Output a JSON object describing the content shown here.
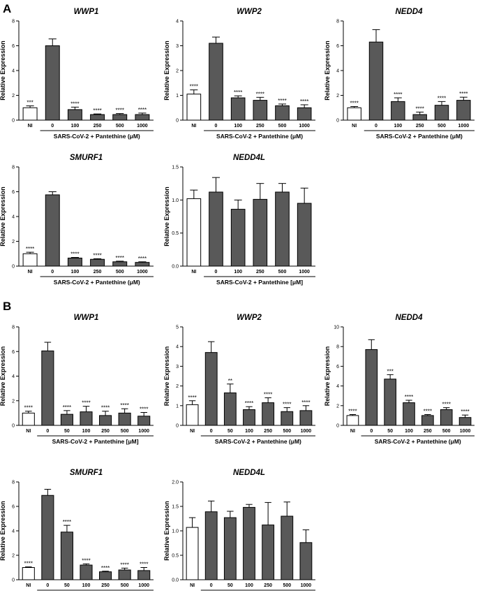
{
  "panels": [
    {
      "letter": "A"
    },
    {
      "letter": "B"
    }
  ],
  "colors": {
    "ni_bar": "#ffffff",
    "treated_bar": "#595959",
    "axis": "#000000"
  },
  "chart_data": [
    {
      "type": "bar",
      "panel": "A",
      "title": "WWP1",
      "ylabel": "Relative Expression",
      "xlabel": "SARS-CoV-2 + Pantethine (μM)",
      "categories": [
        "NI",
        "0",
        "100",
        "250",
        "500",
        "1000"
      ],
      "values": [
        1.0,
        6.0,
        0.85,
        0.45,
        0.45,
        0.45
      ],
      "errors": [
        0.15,
        0.55,
        0.2,
        0.05,
        0.08,
        0.12
      ],
      "significance": [
        "***",
        "",
        "****",
        "****",
        "****",
        "****"
      ],
      "ylim": [
        0,
        8
      ],
      "yticks": [
        0,
        2,
        4,
        6,
        8
      ]
    },
    {
      "type": "bar",
      "panel": "A",
      "title": "WWP2",
      "ylabel": "Relative Expression",
      "xlabel": "SARS-CoV-2 + Pantethine (μM)",
      "categories": [
        "NI",
        "0",
        "100",
        "250",
        "500",
        "1000"
      ],
      "values": [
        1.05,
        3.1,
        0.9,
        0.8,
        0.58,
        0.5
      ],
      "errors": [
        0.17,
        0.25,
        0.08,
        0.12,
        0.07,
        0.12
      ],
      "significance": [
        "****",
        "",
        "****",
        "****",
        "****",
        "****"
      ],
      "ylim": [
        0,
        4
      ],
      "yticks": [
        0,
        1,
        2,
        3,
        4
      ]
    },
    {
      "type": "bar",
      "panel": "A",
      "title": "NEDD4",
      "ylabel": "Relative Expression",
      "xlabel": "SARS-CoV-2 + Pantethine (μM)",
      "categories": [
        "NI",
        "0",
        "100",
        "250",
        "500",
        "1000"
      ],
      "values": [
        1.0,
        6.3,
        1.5,
        0.45,
        1.2,
        1.6
      ],
      "errors": [
        0.1,
        1.0,
        0.3,
        0.2,
        0.3,
        0.25
      ],
      "significance": [
        "****",
        "",
        "****",
        "****",
        "****",
        "****"
      ],
      "ylim": [
        0,
        8
      ],
      "yticks": [
        0,
        2,
        4,
        6,
        8
      ]
    },
    {
      "type": "bar",
      "panel": "A",
      "title": "SMURF1",
      "ylabel": "Relative Expression",
      "xlabel": "SARS-CoV-2 + Pantethine (μM)",
      "categories": [
        "NI",
        "0",
        "100",
        "250",
        "500",
        "1000"
      ],
      "values": [
        1.0,
        5.75,
        0.65,
        0.55,
        0.35,
        0.3
      ],
      "errors": [
        0.12,
        0.25,
        0.05,
        0.05,
        0.05,
        0.05
      ],
      "significance": [
        "****",
        "",
        "****",
        "****",
        "****",
        "****"
      ],
      "ylim": [
        0,
        8
      ],
      "yticks": [
        0,
        2,
        4,
        6,
        8
      ]
    },
    {
      "type": "bar",
      "panel": "A",
      "title": "NEDD4L",
      "ylabel": "Relative Expression",
      "xlabel": "SARS-CoV-2 + Pantethine [μM]",
      "categories": [
        "NI",
        "0",
        "100",
        "250",
        "500",
        "1000"
      ],
      "values": [
        1.02,
        1.12,
        0.86,
        1.01,
        1.12,
        0.95
      ],
      "errors": [
        0.13,
        0.22,
        0.14,
        0.24,
        0.13,
        0.23
      ],
      "significance": [
        "",
        "",
        "",
        "",
        "",
        ""
      ],
      "ylim": [
        0,
        1.5
      ],
      "yticks": [
        0.0,
        0.5,
        1.0,
        1.5
      ]
    },
    {
      "type": "bar",
      "panel": "B",
      "title": "WWP1",
      "ylabel": "Relative Expression",
      "xlabel": "SARS-CoV-2 + Pantethine [μM]",
      "categories": [
        "NI",
        "0",
        "50",
        "100",
        "250",
        "500",
        "1000"
      ],
      "values": [
        1.0,
        6.05,
        0.9,
        1.1,
        0.8,
        1.0,
        0.75
      ],
      "errors": [
        0.15,
        0.7,
        0.3,
        0.45,
        0.35,
        0.35,
        0.3
      ],
      "significance": [
        "****",
        "",
        "****",
        "****",
        "****",
        "****",
        "****"
      ],
      "ylim": [
        0,
        8
      ],
      "yticks": [
        0,
        2,
        4,
        6,
        8
      ]
    },
    {
      "type": "bar",
      "panel": "B",
      "title": "WWP2",
      "ylabel": "Relative Expression",
      "xlabel": "SARS-CoV-2 + Pantethine (μM)",
      "categories": [
        "NI",
        "0",
        "50",
        "100",
        "250",
        "500",
        "1000"
      ],
      "values": [
        1.05,
        3.7,
        1.65,
        0.8,
        1.15,
        0.7,
        0.75
      ],
      "errors": [
        0.2,
        0.55,
        0.45,
        0.15,
        0.25,
        0.2,
        0.25
      ],
      "significance": [
        "****",
        "",
        "**",
        "****",
        "****",
        "****",
        "****"
      ],
      "ylim": [
        0,
        5
      ],
      "yticks": [
        0,
        1,
        2,
        3,
        4,
        5
      ]
    },
    {
      "type": "bar",
      "panel": "B",
      "title": "NEDD4",
      "ylabel": "Relative Expression",
      "xlabel": "SARS-CoV-2 + Pantethine (μM)",
      "categories": [
        "NI",
        "0",
        "50",
        "100",
        "250",
        "500",
        "1000"
      ],
      "values": [
        1.0,
        7.7,
        4.7,
        2.3,
        1.0,
        1.6,
        0.8
      ],
      "errors": [
        0.1,
        1.0,
        0.45,
        0.25,
        0.1,
        0.2,
        0.25
      ],
      "significance": [
        "****",
        "",
        "***",
        "****",
        "****",
        "****",
        "****"
      ],
      "ylim": [
        0,
        10
      ],
      "yticks": [
        0,
        2,
        4,
        6,
        8,
        10
      ]
    },
    {
      "type": "bar",
      "panel": "B",
      "title": "SMURF1",
      "ylabel": "Relative Expression",
      "xlabel": "SARS-CoV-2 + Pantethine (μM)",
      "categories": [
        "NI",
        "0",
        "50",
        "100",
        "250",
        "500",
        "1000"
      ],
      "values": [
        1.0,
        6.9,
        3.9,
        1.2,
        0.65,
        0.8,
        0.75
      ],
      "errors": [
        0.05,
        0.5,
        0.55,
        0.1,
        0.05,
        0.15,
        0.25
      ],
      "significance": [
        "****",
        "",
        "****",
        "****",
        "****",
        "****",
        "****"
      ],
      "ylim": [
        0,
        8
      ],
      "yticks": [
        0,
        2,
        4,
        6,
        8
      ]
    },
    {
      "type": "bar",
      "panel": "B",
      "title": "NEDD4L",
      "ylabel": "Relative Expression",
      "xlabel": "SARS-CoV-2 + Pantethine (μM)",
      "categories": [
        "NI",
        "0",
        "50",
        "100",
        "250",
        "500",
        "1000"
      ],
      "values": [
        1.07,
        1.39,
        1.27,
        1.48,
        1.12,
        1.3,
        0.76
      ],
      "errors": [
        0.2,
        0.22,
        0.13,
        0.06,
        0.46,
        0.29,
        0.26
      ],
      "significance": [
        "",
        "",
        "",
        "",
        "",
        "",
        ""
      ],
      "ylim": [
        0,
        2.0
      ],
      "yticks": [
        0.0,
        0.5,
        1.0,
        1.5,
        2.0
      ]
    }
  ]
}
